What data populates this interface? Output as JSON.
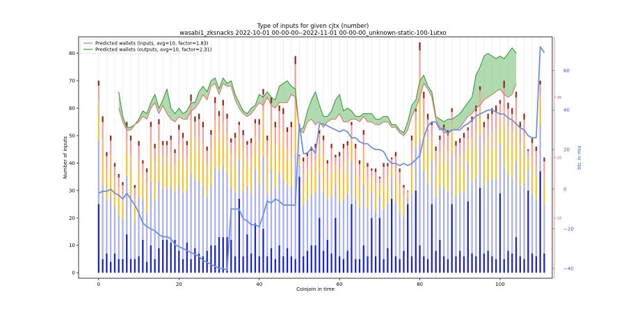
{
  "chart_data": {
    "type": "bar",
    "title": "Type of inputs for given cjtx (number)",
    "subtitle": "wasabi1_zksnacks 2022-10-01 00-00-00--2022-11-01 00-00-00_unknown-static-100-1utxo",
    "xlabel": "Coinjoin in time",
    "ylabel": "Number of inputs",
    "y2label": "btc in mix",
    "xlim": [
      -5,
      113
    ],
    "ylim": [
      -2,
      86
    ],
    "y2lim": [
      -45,
      77
    ],
    "y3lim": [
      0,
      40
    ],
    "xticks": [
      0,
      20,
      40,
      60,
      80,
      100
    ],
    "yticks": [
      0,
      10,
      20,
      30,
      40,
      50,
      60,
      70,
      80
    ],
    "y2ticks": [
      -40,
      -20,
      0,
      20,
      40,
      60
    ],
    "y3ticks": [
      10,
      20,
      30
    ],
    "grid": "vertical",
    "legend_position": "top-left",
    "legend": [
      {
        "label": "Predicted wallets (inputs, avg=10, factor=1.83)",
        "color": "#d9756d"
      },
      {
        "label": "Predicted wallets (outputs, avg=10, factor=2.31)",
        "color": "#3a9a3a"
      }
    ],
    "stack_colors": {
      "blue_dark": "#1a24c8",
      "blue_light": "#aab0ee",
      "gold": "#f4c430",
      "orange": "#f6b67a",
      "pink": "#f0a0a0",
      "brown": "#8b2e1e"
    },
    "bar_totals": [
      70,
      57,
      44,
      50,
      40,
      36,
      33,
      55,
      50,
      32,
      48,
      41,
      38,
      55,
      47,
      56,
      48,
      48,
      50,
      45,
      54,
      51,
      48,
      65,
      57,
      58,
      55,
      46,
      52,
      64,
      59,
      63,
      58,
      49,
      51,
      55,
      52,
      48,
      49,
      56,
      56,
      67,
      50,
      64,
      55,
      61,
      60,
      53,
      55,
      79,
      43,
      42,
      44,
      46,
      47,
      52,
      50,
      41,
      47,
      43,
      44,
      47,
      48,
      55,
      47,
      41,
      52,
      40,
      38,
      38,
      35,
      40,
      40,
      42,
      44,
      38,
      32,
      30,
      50,
      60,
      84,
      66,
      58,
      55,
      46,
      50,
      54,
      52,
      60,
      48,
      49,
      51,
      53,
      57,
      61,
      68,
      55,
      58,
      60,
      61,
      63,
      70,
      62,
      60,
      66,
      55,
      58,
      45,
      49,
      46,
      70,
      42
    ],
    "bar_blue_dark": [
      25,
      5,
      7,
      4,
      7,
      5,
      5,
      14,
      5,
      5,
      6,
      12,
      4,
      10,
      5,
      9,
      12,
      12,
      11,
      12,
      8,
      5,
      11,
      5,
      9,
      7,
      6,
      8,
      10,
      10,
      13,
      13,
      13,
      12,
      6,
      27,
      6,
      14,
      7,
      18,
      6,
      16,
      6,
      9,
      5,
      10,
      6,
      9,
      6,
      5,
      35,
      6,
      8,
      10,
      10,
      20,
      8,
      12,
      7,
      20,
      6,
      5,
      8,
      25,
      5,
      5,
      10,
      6,
      20,
      6,
      20,
      5,
      9,
      27,
      6,
      5,
      8,
      25,
      6,
      30,
      10,
      6,
      5,
      25,
      8,
      12,
      6,
      5,
      25,
      6,
      8,
      6,
      26,
      7,
      6,
      31,
      7,
      8,
      6,
      5,
      29,
      5,
      8,
      7,
      13,
      6,
      5,
      30,
      7,
      6,
      37,
      7
    ],
    "btc_in_mix": {
      "x": [
        0,
        1,
        2,
        3,
        4,
        5,
        6,
        7,
        8,
        9,
        10,
        11,
        12,
        13,
        14,
        15,
        16,
        17,
        18,
        19,
        20,
        21,
        22,
        23,
        24,
        25,
        26,
        27,
        28,
        29,
        30,
        31,
        32,
        33,
        34,
        35,
        36,
        37,
        38,
        39,
        40,
        41,
        42,
        43,
        44,
        45,
        46,
        47,
        48,
        49,
        50,
        51,
        52,
        53,
        54,
        55,
        56,
        57,
        58,
        59,
        60,
        61,
        62,
        63,
        64,
        65,
        66,
        67,
        68,
        69,
        70,
        71,
        72,
        73,
        74,
        75,
        76,
        77,
        78,
        79,
        80,
        81,
        82,
        83,
        84,
        85,
        86,
        87,
        88,
        89,
        90,
        91,
        92,
        93,
        94,
        95,
        96,
        97,
        98,
        99,
        100,
        101,
        102,
        103,
        104,
        105,
        106,
        107,
        108,
        109,
        110,
        111
      ],
      "y": [
        -2,
        -1,
        -1,
        0,
        -2,
        -3,
        -5,
        -2,
        -5,
        -8,
        -12,
        -17,
        -19,
        -20,
        -21,
        -23,
        -24,
        -24,
        -25,
        -28,
        -29,
        -30,
        -31,
        -32,
        -33,
        -34,
        -36,
        -37,
        -38,
        -39,
        -40,
        -40,
        -41,
        -10,
        -10,
        -10,
        -15,
        -16,
        -18,
        -18,
        -19,
        -13,
        -6,
        -7,
        -5,
        -6,
        -8,
        -8,
        -8,
        -8,
        33,
        18,
        18,
        21,
        18,
        33,
        33,
        32,
        31,
        30,
        29,
        30,
        29,
        26,
        26,
        24,
        23,
        23,
        21,
        20,
        20,
        19,
        15,
        13,
        13,
        12,
        13,
        12,
        13,
        15,
        17,
        26,
        32,
        34,
        34,
        30,
        31,
        28,
        30,
        30,
        30,
        32,
        33,
        35,
        37,
        38,
        39,
        40,
        40,
        39,
        38,
        38,
        36,
        35,
        33,
        31,
        30,
        27,
        26,
        26,
        72,
        69
      ]
    },
    "predicted_wallets_inputs": {
      "x": [
        5,
        6,
        7,
        8,
        9,
        10,
        11,
        12,
        13,
        14,
        15,
        16,
        17,
        18,
        19,
        20,
        21,
        22,
        23,
        24,
        25,
        26,
        27,
        28,
        29,
        30,
        31,
        32,
        33,
        34,
        35,
        36,
        37,
        38,
        39,
        40,
        41,
        42,
        43,
        44,
        45,
        46,
        47,
        48,
        49,
        50,
        51,
        52,
        53,
        54,
        55,
        56,
        57,
        58,
        59,
        60,
        61,
        62,
        63,
        64,
        65,
        66,
        67,
        68,
        69,
        70,
        71,
        72,
        73,
        74,
        75,
        76,
        77,
        78,
        79,
        80,
        81,
        82,
        83,
        84,
        85,
        86,
        87,
        88,
        89,
        90,
        91,
        92,
        93,
        94,
        95,
        96,
        97,
        98,
        99,
        100,
        101,
        102,
        103,
        104
      ],
      "y": [
        60,
        55,
        52,
        52,
        54,
        55,
        57,
        56,
        60,
        62,
        58,
        61,
        58,
        56,
        55,
        57,
        56,
        56,
        59,
        60,
        62,
        65,
        63,
        68,
        69,
        65,
        69,
        68,
        68,
        63,
        60,
        58,
        57,
        58,
        60,
        62,
        61,
        64,
        61,
        60,
        62,
        62,
        62,
        65,
        64,
        52,
        51,
        55,
        56,
        54,
        55,
        53,
        55,
        56,
        56,
        58,
        55,
        55,
        56,
        56,
        55,
        57,
        55,
        55,
        54,
        54,
        55,
        55,
        53,
        53,
        51,
        50,
        52,
        57,
        60,
        64,
        69,
        67,
        64,
        56,
        53,
        51,
        51,
        52,
        52,
        53,
        55,
        57,
        58,
        60,
        61,
        63,
        64,
        65,
        66,
        67,
        65,
        64,
        65,
        69
      ]
    },
    "predicted_wallets_outputs": {
      "x": [
        5,
        6,
        7,
        8,
        9,
        10,
        11,
        12,
        13,
        14,
        15,
        16,
        17,
        18,
        19,
        20,
        21,
        22,
        23,
        24,
        25,
        26,
        27,
        28,
        29,
        30,
        31,
        32,
        33,
        34,
        35,
        36,
        37,
        38,
        39,
        40,
        41,
        42,
        43,
        44,
        45,
        46,
        47,
        48,
        49,
        50,
        51,
        52,
        53,
        54,
        55,
        56,
        57,
        58,
        59,
        60,
        61,
        62,
        63,
        64,
        65,
        66,
        67,
        68,
        69,
        70,
        71,
        72,
        73,
        74,
        75,
        76,
        77,
        78,
        79,
        80,
        81,
        82,
        83,
        84,
        85,
        86,
        87,
        88,
        89,
        90,
        91,
        92,
        93,
        94,
        95,
        96,
        97,
        98,
        99,
        100,
        101,
        102,
        103,
        104
      ],
      "y": [
        66,
        57,
        53,
        53,
        54,
        56,
        59,
        58,
        62,
        65,
        60,
        63,
        67,
        60,
        58,
        60,
        58,
        59,
        62,
        62,
        66,
        68,
        66,
        70,
        71,
        67,
        71,
        69,
        70,
        65,
        62,
        59,
        58,
        60,
        61,
        65,
        64,
        66,
        64,
        63,
        68,
        69,
        70,
        68,
        67,
        52,
        53,
        59,
        63,
        66,
        61,
        57,
        57,
        59,
        63,
        65,
        59,
        60,
        59,
        57,
        57,
        58,
        58,
        58,
        56,
        56,
        57,
        57,
        54,
        54,
        52,
        51,
        55,
        61,
        63,
        70,
        72,
        68,
        66,
        57,
        56,
        55,
        56,
        56,
        57,
        58,
        60,
        62,
        64,
        72,
        75,
        79,
        80,
        79,
        78,
        79,
        78,
        80,
        82,
        80
      ]
    }
  }
}
